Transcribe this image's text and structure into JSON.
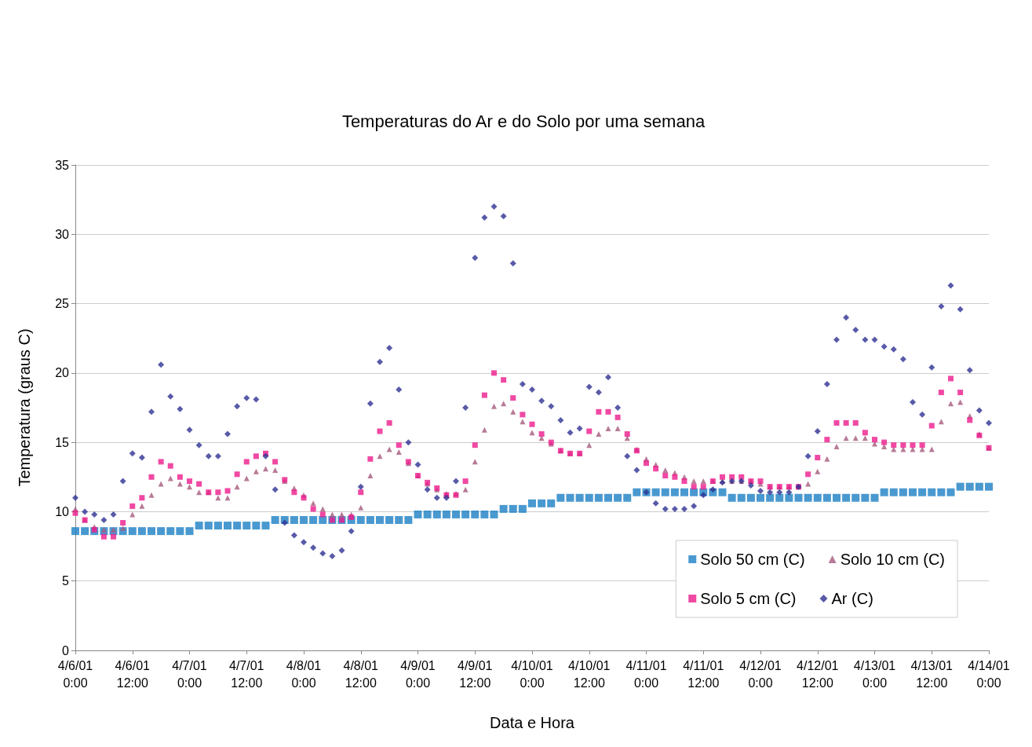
{
  "chart_data": {
    "type": "scatter",
    "title": "Temperaturas do Ar e do Solo por uma semana",
    "xlabel": "Data e Hora",
    "ylabel": "Temperatura (graus C)",
    "x": [
      "--04-06T00:00",
      "--04-06T02:00",
      "--04-06T04:00",
      "--04-06T06:00",
      "--04-06T08:00",
      "--04-06T10:00",
      "--04-06T12:00",
      "--04-06T14:00",
      "--04-06T16:00",
      "--04-06T18:00",
      "--04-06T20:00",
      "--04-06T22:00",
      "--04-07T00:00",
      "--04-07T02:00",
      "--04-07T04:00",
      "--04-07T06:00",
      "--04-07T08:00",
      "--04-07T10:00",
      "--04-07T12:00",
      "--04-07T14:00",
      "--04-07T16:00",
      "--04-07T18:00",
      "--04-07T20:00",
      "--04-07T22:00",
      "--04-08T00:00",
      "--04-08T02:00",
      "--04-08T04:00",
      "--04-08T06:00",
      "--04-08T08:00",
      "--04-08T10:00",
      "--04-08T12:00",
      "--04-08T14:00",
      "--04-08T16:00",
      "--04-08T18:00",
      "--04-08T20:00",
      "--04-08T22:00",
      "--04-09T00:00",
      "--04-09T02:00",
      "--04-09T04:00",
      "--04-09T06:00",
      "--04-09T08:00",
      "--04-09T10:00",
      "--04-09T12:00",
      "--04-09T14:00",
      "--04-09T16:00",
      "--04-09T18:00",
      "--04-09T20:00",
      "--04-09T22:00",
      "--04-10T00:00",
      "--04-10T02:00",
      "--04-10T04:00",
      "--04-10T06:00",
      "--04-10T08:00",
      "--04-10T10:00",
      "--04-10T12:00",
      "--04-10T14:00",
      "--04-10T16:00",
      "--04-10T18:00",
      "--04-10T20:00",
      "--04-10T22:00",
      "--04-11T00:00",
      "--04-11T02:00",
      "--04-11T04:00",
      "--04-11T06:00",
      "--04-11T08:00",
      "--04-11T10:00",
      "--04-11T12:00",
      "--04-11T14:00",
      "--04-11T16:00",
      "--04-11T18:00",
      "--04-11T20:00",
      "--04-11T22:00",
      "--04-12T00:00",
      "--04-12T02:00",
      "--04-12T04:00",
      "--04-12T06:00",
      "--04-12T08:00",
      "--04-12T10:00",
      "--04-12T12:00",
      "--04-12T14:00",
      "--04-12T16:00",
      "--04-12T18:00",
      "--04-12T20:00",
      "--04-12T22:00",
      "--04-13T00:00",
      "--04-13T02:00",
      "--04-13T04:00",
      "--04-13T06:00",
      "--04-13T08:00",
      "--04-13T10:00",
      "--04-13T12:00",
      "--04-13T14:00",
      "--04-13T16:00",
      "--04-13T18:00",
      "--04-13T20:00",
      "--04-13T22:00",
      "--04-14T00:00"
    ],
    "series": [
      {
        "name": "Solo 50 cm (C)",
        "color": "#1b80c4",
        "marker": "square",
        "values": [
          8.6,
          8.6,
          8.6,
          8.6,
          8.6,
          8.6,
          8.6,
          8.6,
          8.6,
          8.6,
          8.6,
          8.6,
          8.6,
          9.0,
          9.0,
          9.0,
          9.0,
          9.0,
          9.0,
          9.0,
          9.0,
          9.4,
          9.4,
          9.4,
          9.4,
          9.4,
          9.4,
          9.4,
          9.4,
          9.4,
          9.4,
          9.4,
          9.4,
          9.4,
          9.4,
          9.4,
          9.8,
          9.8,
          9.8,
          9.8,
          9.8,
          9.8,
          9.8,
          9.8,
          9.8,
          10.2,
          10.2,
          10.2,
          10.6,
          10.6,
          10.6,
          11.0,
          11.0,
          11.0,
          11.0,
          11.0,
          11.0,
          11.0,
          11.0,
          11.4,
          11.4,
          11.4,
          11.4,
          11.4,
          11.4,
          11.4,
          11.4,
          11.4,
          11.4,
          11.0,
          11.0,
          11.0,
          11.0,
          11.0,
          11.0,
          11.0,
          11.0,
          11.0,
          11.0,
          11.0,
          11.0,
          11.0,
          11.0,
          11.0,
          11.0,
          11.4,
          11.4,
          11.4,
          11.4,
          11.4,
          11.4,
          11.4,
          11.4,
          11.8,
          11.8,
          11.8,
          11.8
        ]
      },
      {
        "name": "Solo 10 cm (C)",
        "color": "#a55a7d",
        "marker": "triangle",
        "values": [
          10.2,
          9.4,
          8.9,
          8.7,
          8.7,
          8.8,
          9.8,
          10.4,
          11.2,
          12.0,
          12.4,
          12.0,
          11.8,
          11.4,
          11.4,
          11.0,
          11.0,
          11.8,
          12.4,
          12.9,
          13.1,
          13.0,
          12.2,
          11.7,
          11.2,
          10.6,
          10.2,
          9.8,
          9.8,
          9.8,
          10.3,
          12.6,
          14.0,
          14.5,
          14.3,
          13.5,
          12.6,
          12.0,
          11.6,
          11.3,
          11.3,
          11.6,
          13.6,
          15.9,
          17.6,
          17.8,
          17.2,
          16.5,
          15.7,
          15.3,
          14.9,
          14.4,
          14.2,
          14.2,
          14.8,
          15.6,
          16.0,
          16.0,
          15.3,
          14.5,
          13.8,
          13.4,
          13.0,
          12.8,
          12.5,
          12.2,
          12.2,
          12.2,
          12.2,
          12.2,
          12.2,
          12.2,
          12.0,
          11.8,
          11.8,
          11.8,
          11.8,
          12.0,
          12.9,
          13.8,
          14.7,
          15.3,
          15.3,
          15.3,
          14.9,
          14.7,
          14.5,
          14.5,
          14.5,
          14.5,
          14.5,
          16.5,
          17.8,
          17.9,
          16.9,
          15.6,
          14.6
        ]
      },
      {
        "name": "Solo 5 cm (C)",
        "color": "#ec1c8c",
        "marker": "square",
        "values": [
          9.9,
          9.4,
          8.7,
          8.2,
          8.2,
          9.2,
          10.4,
          11.0,
          12.5,
          13.6,
          13.3,
          12.5,
          12.2,
          12.0,
          11.4,
          11.4,
          11.5,
          12.7,
          13.6,
          14.0,
          14.2,
          13.6,
          12.3,
          11.4,
          11.0,
          10.2,
          9.8,
          9.4,
          9.4,
          9.6,
          11.4,
          13.8,
          15.8,
          16.4,
          14.8,
          13.6,
          12.6,
          12.1,
          11.7,
          11.2,
          11.2,
          12.2,
          14.8,
          18.4,
          20.0,
          19.5,
          18.2,
          17.0,
          16.3,
          15.6,
          15.0,
          14.4,
          14.2,
          14.2,
          15.8,
          17.2,
          17.2,
          16.8,
          15.6,
          14.4,
          13.5,
          13.1,
          12.6,
          12.5,
          12.2,
          11.8,
          11.8,
          12.2,
          12.5,
          12.5,
          12.5,
          12.2,
          12.2,
          11.8,
          11.8,
          11.8,
          11.8,
          12.7,
          13.9,
          15.2,
          16.4,
          16.4,
          16.4,
          15.7,
          15.2,
          15.0,
          14.8,
          14.8,
          14.8,
          14.8,
          16.2,
          18.6,
          19.6,
          18.6,
          16.6,
          15.5,
          14.6
        ]
      },
      {
        "name": "Ar (C)",
        "color": "#2e3192",
        "marker": "diamond",
        "values": [
          11.0,
          10.0,
          9.8,
          9.4,
          9.8,
          12.2,
          14.2,
          13.9,
          17.2,
          20.6,
          18.3,
          17.4,
          15.9,
          14.8,
          14.0,
          14.0,
          15.6,
          17.6,
          18.2,
          18.1,
          14.0,
          11.6,
          9.2,
          8.3,
          7.8,
          7.4,
          7.0,
          6.8,
          7.2,
          8.6,
          11.8,
          17.8,
          20.8,
          21.8,
          18.8,
          15.0,
          13.4,
          11.6,
          11.0,
          11.0,
          12.2,
          17.5,
          28.3,
          31.2,
          32.0,
          31.3,
          27.9,
          19.2,
          18.8,
          18.0,
          17.6,
          16.6,
          15.7,
          16.0,
          19.0,
          18.6,
          19.7,
          17.5,
          14.0,
          13.0,
          11.4,
          10.6,
          10.2,
          10.2,
          10.2,
          10.4,
          11.2,
          11.6,
          12.1,
          12.2,
          12.2,
          11.9,
          11.5,
          11.4,
          11.4,
          11.4,
          11.8,
          14.0,
          15.8,
          19.2,
          22.4,
          24.0,
          23.1,
          22.4,
          22.4,
          21.9,
          21.7,
          21.0,
          17.9,
          17.0,
          20.4,
          24.8,
          26.3,
          24.6,
          20.2,
          17.3,
          16.4
        ]
      }
    ],
    "xlim": [
      "--04-06T00:00",
      "--04-14T00:00"
    ],
    "xticks": [
      {
        "value": "--04-06T00:00",
        "label": "4/6/01 0:00"
      },
      {
        "value": "--04-06T12:00",
        "label": "4/6/01 12:00"
      },
      {
        "value": "--04-07T00:00",
        "label": "4/7/01 0:00"
      },
      {
        "value": "--04-07T12:00",
        "label": "4/7/01 12:00"
      },
      {
        "value": "--04-08T00:00",
        "label": "4/8/01 0:00"
      },
      {
        "value": "--04-08T12:00",
        "label": "4/8/01 12:00"
      },
      {
        "value": "--04-09T00:00",
        "label": "4/9/01 0:00"
      },
      {
        "value": "--04-09T12:00",
        "label": "4/9/01 12:00"
      },
      {
        "value": "--04-10T00:00",
        "label": "4/10/01 0:00"
      },
      {
        "value": "--04-10T12:00",
        "label": "4/10/01 12:00"
      },
      {
        "value": "--04-11T00:00",
        "label": "4/11/01 0:00"
      },
      {
        "value": "--04-11T12:00",
        "label": "4/11/01 12:00"
      },
      {
        "value": "--04-12T00:00",
        "label": "4/12/01 0:00"
      },
      {
        "value": "--04-12T12:00",
        "label": "4/12/01 12:00"
      },
      {
        "value": "--04-13T00:00",
        "label": "4/13/01 0:00"
      },
      {
        "value": "--04-13T12:00",
        "label": "4/13/01 12:00"
      },
      {
        "value": "--04-14T00:00",
        "label": "4/14/01 0:00"
      }
    ],
    "ylim": [
      0,
      35
    ],
    "yticks": [
      0,
      5,
      10,
      15,
      20,
      25,
      30,
      35
    ],
    "grid": "y",
    "legend": "bottom right"
  }
}
